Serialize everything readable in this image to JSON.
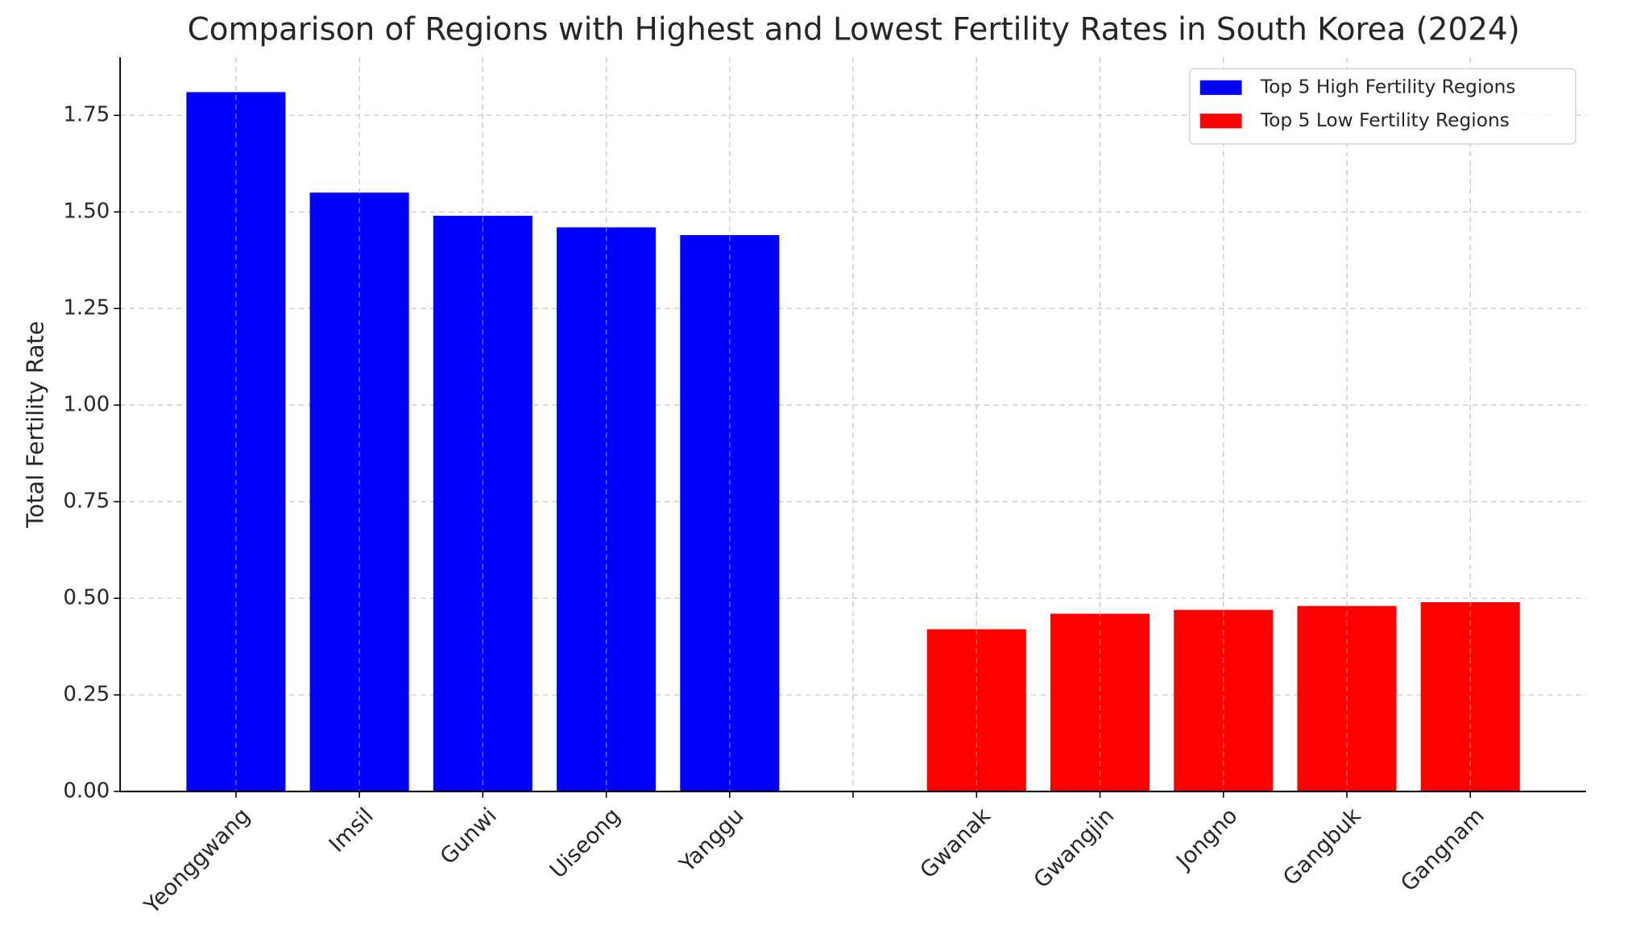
{
  "chart_data": {
    "type": "bar",
    "title": "Comparison of Regions with Highest and Lowest Fertility Rates in South Korea (2024)",
    "y_label": "Total Fertility Rate",
    "categories": [
      "Yeonggwang",
      "Imsil",
      "Gunwi",
      "Uiseong",
      "Yanggu",
      null,
      "Gwanak",
      "Gwangjin",
      "Jongno",
      "Gangbuk",
      "Gangnam"
    ],
    "series": [
      {
        "name": "Top 5 High Fertility Regions",
        "color": "#0000ff",
        "values": [
          1.81,
          1.55,
          1.49,
          1.46,
          1.44,
          null,
          null,
          null,
          null,
          null,
          null
        ]
      },
      {
        "name": "Top 5 Low Fertility Regions",
        "color": "#ff0000",
        "values": [
          null,
          null,
          null,
          null,
          null,
          null,
          0.42,
          0.46,
          0.47,
          0.48,
          0.49
        ]
      }
    ],
    "ylim": [
      0,
      1.9
    ],
    "yticks": [
      {
        "value": 0,
        "label": "0.00"
      },
      0.25,
      {
        "value": 0.5,
        "label": "0.50"
      },
      0.75,
      {
        "value": 1,
        "label": "1.00"
      },
      1.25,
      {
        "value": 1.5,
        "label": "1.50"
      },
      1.75
    ],
    "grid": true,
    "legend": "upper right"
  }
}
